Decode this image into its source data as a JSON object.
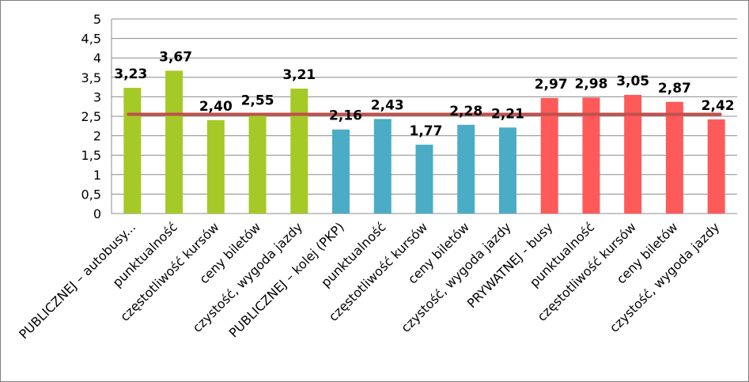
{
  "chart_data": {
    "type": "bar",
    "title": "",
    "xlabel": "",
    "ylabel": "",
    "ylim": [
      0,
      5
    ],
    "yticks": [
      "0",
      "0,5",
      "1",
      "1,5",
      "2",
      "2,5",
      "3",
      "3,5",
      "4",
      "4,5",
      "5"
    ],
    "ytick_values": [
      0,
      0.5,
      1,
      1.5,
      2,
      2.5,
      3,
      3.5,
      4,
      4.5,
      5
    ],
    "grid": true,
    "categories": [
      "PUBLICZNEJ – autobusy...",
      "punktualność",
      "częstotliwość kursów",
      "ceny biletów",
      "czystość, wygoda jazdy",
      "PUBLICZNEJ – kolej (PKP)",
      "punktualność",
      "częstotliwość kursów",
      "ceny biletów",
      "czystość, wygoda jazdy",
      "PRYWATNEJ - busy",
      "punktualność",
      "częstotliwość kursów",
      "ceny biletów",
      "czystość, wygoda jazdy"
    ],
    "values": [
      3.23,
      3.67,
      2.4,
      2.55,
      3.21,
      2.16,
      2.43,
      1.77,
      2.28,
      2.21,
      2.97,
      2.98,
      3.05,
      2.87,
      2.42
    ],
    "value_labels": [
      "3,23",
      "3,67",
      "2,40",
      "2,55",
      "3,21",
      "2,16",
      "2,43",
      "1,77",
      "2,28",
      "2,21",
      "2,97",
      "2,98",
      "3,05",
      "2,87",
      "2,42"
    ],
    "bar_colors": [
      "#a5c926",
      "#a5c926",
      "#a5c926",
      "#a5c926",
      "#a5c926",
      "#4bacc6",
      "#4bacc6",
      "#4bacc6",
      "#4bacc6",
      "#4bacc6",
      "#ff5a5a",
      "#ff5a5a",
      "#ff5a5a",
      "#ff5a5a",
      "#ff5a5a"
    ],
    "reference_line": {
      "value": 2.55,
      "color": "#c0504d"
    },
    "colors": {
      "grid": "#8c8c8c",
      "axis": "#8c8c8c"
    }
  }
}
